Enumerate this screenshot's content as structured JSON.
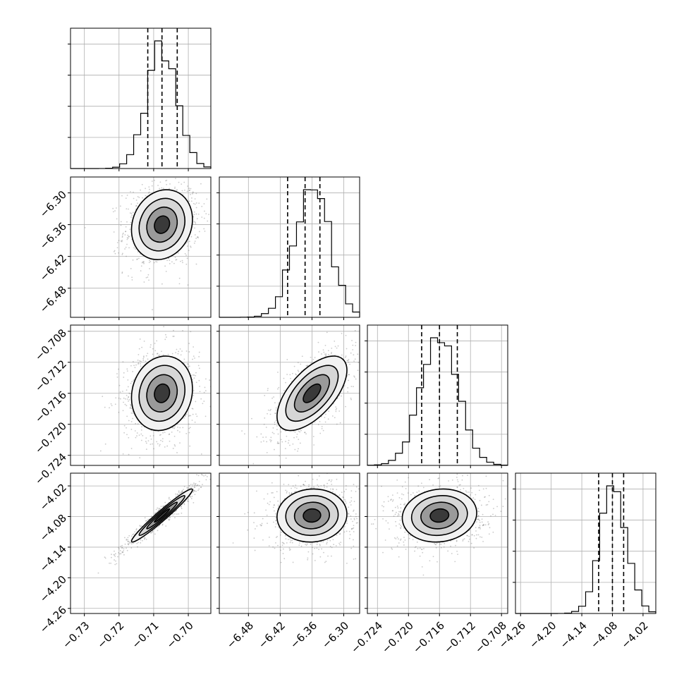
{
  "chart_data": {
    "type": "corner",
    "grid": true,
    "parameters": [
      {
        "ticks": [
          -0.73,
          -0.72,
          -0.71,
          -0.7
        ],
        "tick_labels": [
          "−0.73",
          "−0.72",
          "−0.71",
          "−0.70"
        ],
        "range": [
          -0.734,
          -0.6935
        ]
      },
      {
        "ticks": [
          -6.48,
          -6.42,
          -6.36,
          -6.3
        ],
        "tick_labels": [
          "−6.48",
          "−6.42",
          "−6.36",
          "−6.30"
        ],
        "range": [
          -6.535,
          -6.27
        ]
      },
      {
        "ticks": [
          -0.724,
          -0.72,
          -0.716,
          -0.712,
          -0.708
        ],
        "tick_labels": [
          "−0.724",
          "−0.720",
          "−0.716",
          "−0.712",
          "−0.708"
        ],
        "range": [
          -0.7253,
          -0.7072
        ]
      },
      {
        "ticks": [
          -4.26,
          -4.2,
          -4.14,
          -4.08,
          -4.02
        ],
        "tick_labels": [
          "−4.26",
          "−4.20",
          "−4.14",
          "−4.08",
          "−4.02"
        ],
        "range": [
          -4.27,
          -3.995
        ]
      }
    ],
    "marginals": [
      {
        "quantiles": [
          -0.7117,
          -0.7076,
          -0.7032
        ],
        "peak": -0.7076,
        "sd": 0.0044
      },
      {
        "quantiles": [
          -6.406,
          -6.373,
          -6.345
        ],
        "peak": -6.36,
        "sd": 0.033
      },
      {
        "quantiles": [
          -0.7183,
          -0.716,
          -0.7137
        ],
        "peak": -0.716,
        "sd": 0.0024
      },
      {
        "quantiles": [
          -4.107,
          -4.08,
          -4.058
        ],
        "peak": -4.078,
        "sd": 0.026
      }
    ],
    "correlations": [
      {
        "row": 1,
        "col": 0,
        "r": 0.15
      },
      {
        "row": 2,
        "col": 0,
        "r": 0.12
      },
      {
        "row": 2,
        "col": 1,
        "r": 0.62
      },
      {
        "row": 3,
        "col": 0,
        "r": 0.97
      },
      {
        "row": 3,
        "col": 1,
        "r": 0.05
      },
      {
        "row": 3,
        "col": 2,
        "r": 0.1
      }
    ]
  }
}
